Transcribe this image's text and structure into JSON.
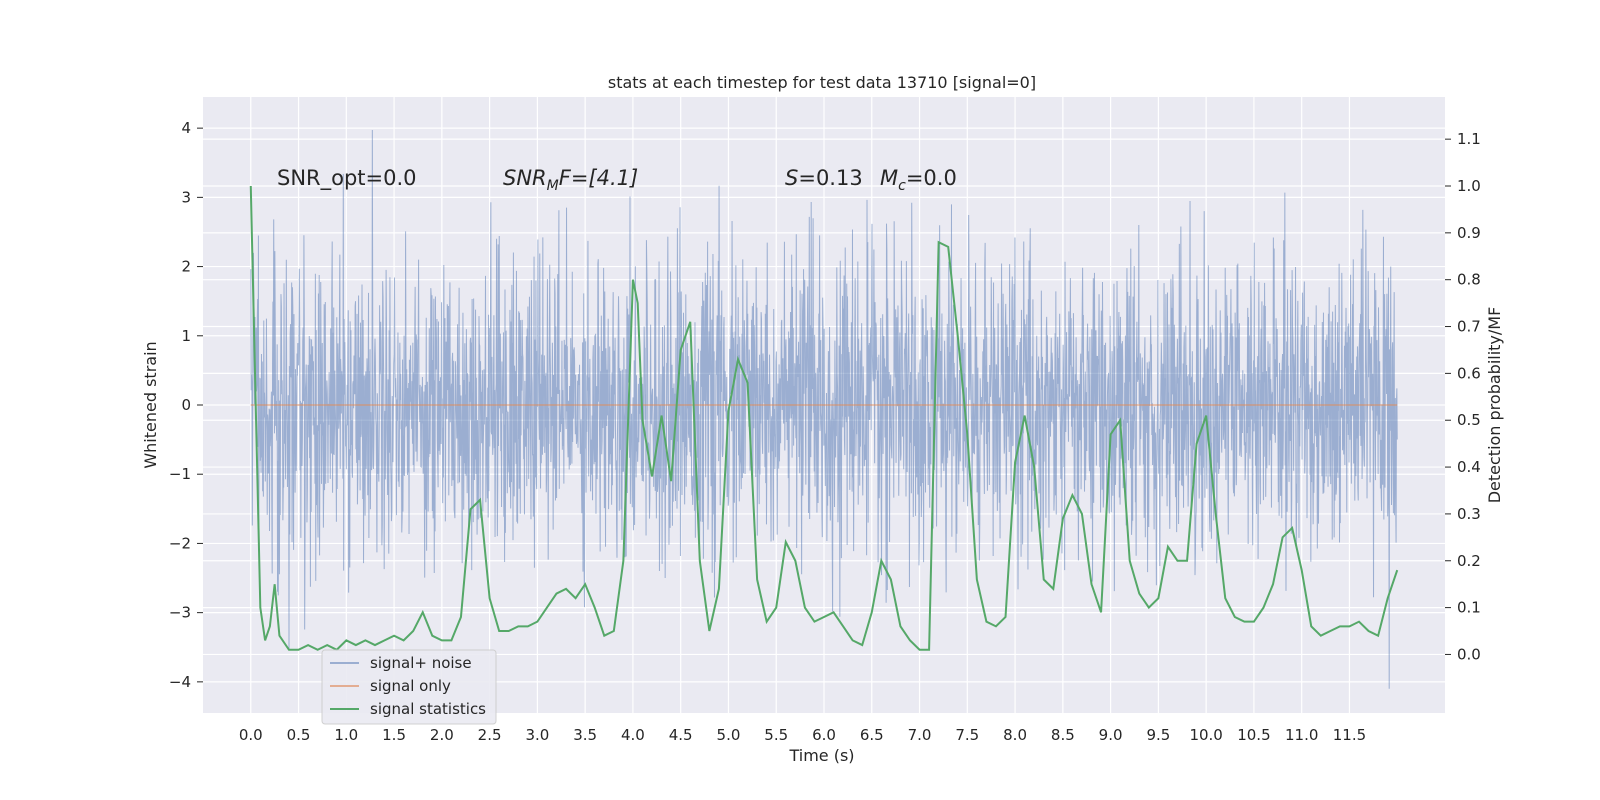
{
  "chart_data": {
    "type": "line",
    "title": "stats at each timestep for test data 13710 [signal=0]",
    "xlabel": "Time (s)",
    "ylabel": "Whitened strain",
    "y2label": "Detection probability/MF",
    "xlim": [
      -0.5,
      12.5
    ],
    "ylim": [
      -4.45,
      4.45
    ],
    "y2lim": [
      -0.125,
      1.19
    ],
    "grid": true,
    "legend_position": "lower-left",
    "x_ticks": [
      "0.0",
      "0.5",
      "1.0",
      "1.5",
      "2.0",
      "2.5",
      "3.0",
      "3.5",
      "4.0",
      "4.5",
      "5.0",
      "5.5",
      "6.0",
      "6.5",
      "7.0",
      "7.5",
      "8.0",
      "8.5",
      "9.0",
      "9.5",
      "10.0",
      "10.5",
      "11.0",
      "11.5"
    ],
    "y_ticks": [
      "4",
      "3",
      "2",
      "1",
      "0",
      "−1",
      "−2",
      "−3",
      "−4"
    ],
    "y2_ticks": [
      "1.1",
      "1.0",
      "0.9",
      "0.8",
      "0.7",
      "0.6",
      "0.5",
      "0.4",
      "0.3",
      "0.2",
      "0.1",
      "0.0"
    ],
    "annotations": {
      "snr_opt": "SNR_opt=0.0",
      "snr_mf_sym": "SNR",
      "snr_mf_sub": "M",
      "snr_mf_rest": "F=[4.1]",
      "s_sym": "S",
      "s_val": "=0.13",
      "mc_sym": "M",
      "mc_sub": "c",
      "mc_val": "=0.0"
    },
    "series": [
      {
        "name": "signal+ noise",
        "color": "#4c72b0",
        "note_range": [
          -4.1,
          4.05
        ],
        "duration": 12.0
      },
      {
        "name": "signal only",
        "color": "#dd8452",
        "constant_value": 0.0
      },
      {
        "name": "signal statistics",
        "color": "#55a868",
        "x": [
          0.0,
          0.1,
          0.15,
          0.2,
          0.25,
          0.3,
          0.4,
          0.5,
          0.6,
          0.7,
          0.8,
          0.9,
          1.0,
          1.1,
          1.2,
          1.3,
          1.4,
          1.5,
          1.6,
          1.7,
          1.8,
          1.9,
          2.0,
          2.1,
          2.2,
          2.3,
          2.4,
          2.5,
          2.6,
          2.7,
          2.8,
          2.9,
          3.0,
          3.1,
          3.2,
          3.3,
          3.4,
          3.5,
          3.6,
          3.7,
          3.8,
          3.9,
          4.0,
          4.05,
          4.1,
          4.2,
          4.3,
          4.4,
          4.5,
          4.6,
          4.7,
          4.8,
          4.9,
          5.0,
          5.1,
          5.2,
          5.3,
          5.4,
          5.5,
          5.6,
          5.7,
          5.8,
          5.9,
          6.0,
          6.1,
          6.2,
          6.3,
          6.4,
          6.5,
          6.6,
          6.7,
          6.8,
          6.9,
          7.0,
          7.1,
          7.2,
          7.3,
          7.4,
          7.5,
          7.6,
          7.7,
          7.8,
          7.9,
          8.0,
          8.1,
          8.2,
          8.3,
          8.4,
          8.5,
          8.6,
          8.7,
          8.8,
          8.9,
          9.0,
          9.1,
          9.2,
          9.3,
          9.4,
          9.5,
          9.6,
          9.7,
          9.8,
          9.9,
          10.0,
          10.1,
          10.2,
          10.3,
          10.4,
          10.5,
          10.6,
          10.7,
          10.8,
          10.9,
          11.0,
          11.1,
          11.2,
          11.3,
          11.4,
          11.5,
          11.6,
          11.7,
          11.8,
          11.9,
          12.0
        ],
        "values": [
          1.0,
          0.1,
          0.03,
          0.06,
          0.15,
          0.04,
          0.01,
          0.01,
          0.02,
          0.01,
          0.02,
          0.01,
          0.03,
          0.02,
          0.03,
          0.02,
          0.03,
          0.04,
          0.03,
          0.05,
          0.09,
          0.04,
          0.03,
          0.03,
          0.08,
          0.31,
          0.33,
          0.12,
          0.05,
          0.05,
          0.06,
          0.06,
          0.07,
          0.1,
          0.13,
          0.14,
          0.12,
          0.15,
          0.1,
          0.04,
          0.05,
          0.2,
          0.8,
          0.75,
          0.5,
          0.38,
          0.51,
          0.37,
          0.65,
          0.71,
          0.2,
          0.05,
          0.14,
          0.52,
          0.63,
          0.58,
          0.16,
          0.07,
          0.1,
          0.24,
          0.2,
          0.1,
          0.07,
          0.08,
          0.09,
          0.06,
          0.03,
          0.02,
          0.09,
          0.2,
          0.16,
          0.06,
          0.03,
          0.01,
          0.01,
          0.88,
          0.87,
          0.68,
          0.47,
          0.16,
          0.07,
          0.06,
          0.08,
          0.41,
          0.51,
          0.4,
          0.16,
          0.14,
          0.29,
          0.34,
          0.3,
          0.15,
          0.09,
          0.47,
          0.5,
          0.2,
          0.13,
          0.1,
          0.12,
          0.23,
          0.2,
          0.2,
          0.45,
          0.51,
          0.3,
          0.12,
          0.08,
          0.07,
          0.07,
          0.1,
          0.15,
          0.25,
          0.27,
          0.18,
          0.06,
          0.04,
          0.05,
          0.06,
          0.06,
          0.07,
          0.05,
          0.04,
          0.12,
          0.18
        ]
      }
    ]
  }
}
